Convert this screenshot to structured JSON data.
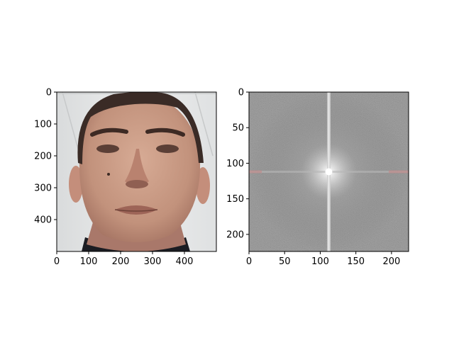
{
  "colors": {
    "axes_edge": "#000000",
    "background": "#ffffff",
    "face_wall": "#e8e9ea",
    "face_skin": "#c79a85",
    "face_skin_shadow": "#a9786a",
    "face_hair": "#3a2b26",
    "face_shirt": "#1b1c22",
    "spectrum_base": "#6f6f6f",
    "spectrum_center": "#ffffff",
    "spectrum_red_tint": "#c48484"
  },
  "chart_data": [
    {
      "type": "image",
      "content": "face photograph",
      "xlim": [
        0,
        500
      ],
      "ylim": [
        500,
        0
      ],
      "xticks": [
        0,
        100,
        200,
        300,
        400
      ],
      "yticks": [
        0,
        100,
        200,
        300,
        400
      ],
      "title": "",
      "xlabel": "",
      "ylabel": ""
    },
    {
      "type": "image",
      "content": "2D Fourier magnitude spectrum (log scale, grayscale)",
      "xlim": [
        0,
        224
      ],
      "ylim": [
        224,
        0
      ],
      "xticks": [
        0,
        50,
        100,
        150,
        200
      ],
      "yticks": [
        0,
        50,
        100,
        150,
        200
      ],
      "center": [
        112,
        112
      ],
      "title": "",
      "xlabel": "",
      "ylabel": ""
    }
  ]
}
